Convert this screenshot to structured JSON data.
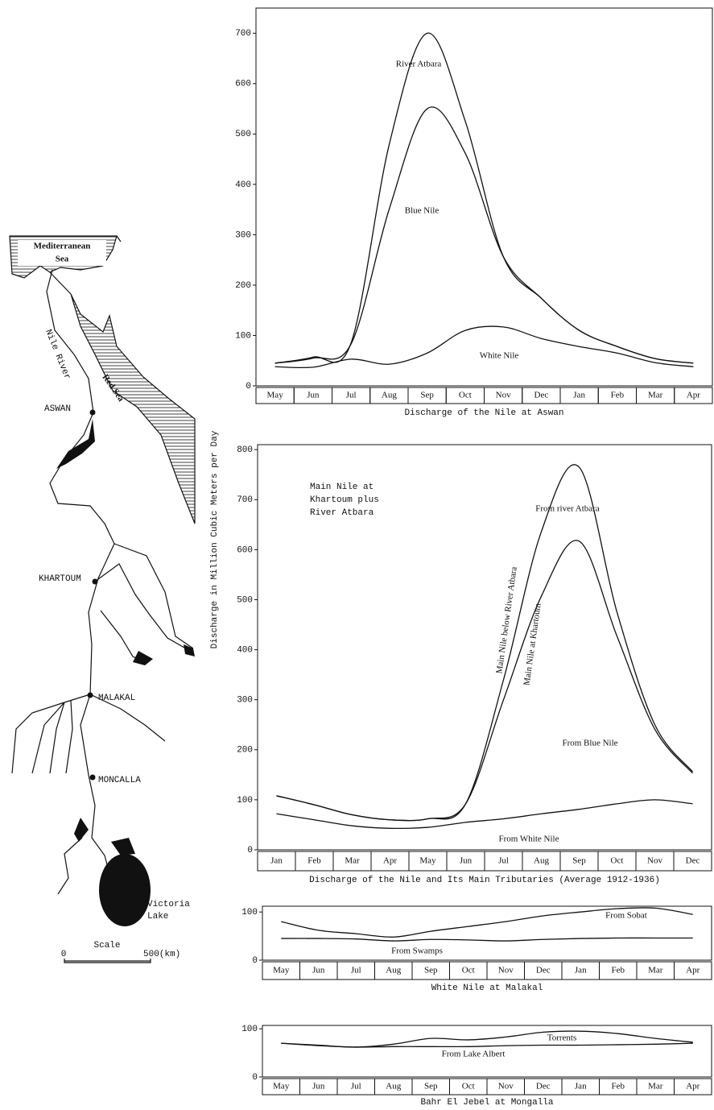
{
  "y_axis_label": "Discharge in Million Cubic Meters per Day",
  "map": {
    "mediterranean": [
      "Mediterranean",
      "Sea"
    ],
    "red_sea": "Red Sea",
    "river": "Nile River",
    "cities": [
      "ASWAN",
      "KHARTOUM",
      "MALAKAL",
      "MONCALLA"
    ],
    "lake": [
      "Victoria",
      "Lake"
    ],
    "scale": {
      "title": "Scale",
      "start": "0",
      "end": "500(km)"
    }
  },
  "chart_data": [
    {
      "type": "line",
      "stacked": true,
      "title": "Discharge of the Nile at Aswan",
      "categories": [
        "May",
        "Jun",
        "Jul",
        "Aug",
        "Sep",
        "Oct",
        "Nov",
        "Dec",
        "Jan",
        "Feb",
        "Mar",
        "Apr"
      ],
      "series": [
        {
          "name": "White Nile",
          "color": "#111111",
          "values": [
            38,
            37,
            53,
            43,
            65,
            110,
            117,
            94,
            78,
            65,
            46,
            38
          ]
        },
        {
          "name": "Blue Nile",
          "color": "#111111",
          "values": [
            7,
            18,
            30,
            307,
            485,
            352,
            140,
            80,
            32,
            13,
            8,
            7
          ]
        },
        {
          "name": "River Atbara",
          "color": "#111111",
          "values": [
            0,
            2,
            2,
            128,
            150,
            64,
            0,
            0,
            0,
            0,
            0,
            0
          ]
        }
      ],
      "ylim": [
        0,
        750
      ],
      "yticks": [
        0,
        100,
        200,
        300,
        400,
        500,
        600,
        700
      ]
    },
    {
      "type": "line",
      "stacked": true,
      "title": "Discharge of the Nile and Its Main Tributaries (Average 1912-1936)",
      "annotation": [
        "Main Nile at",
        "Khartoum plus",
        "River Atbara"
      ],
      "curve_labels": [
        "Main Nile below River Atbara",
        "Main Nile at Khartoum"
      ],
      "categories": [
        "Jan",
        "Feb",
        "Mar",
        "Apr",
        "May",
        "Jun",
        "Jul",
        "Aug",
        "Sep",
        "Oct",
        "Nov",
        "Dec"
      ],
      "series": [
        {
          "name": "From White Nile",
          "color": "#111111",
          "values": [
            72,
            60,
            48,
            43,
            45,
            55,
            62,
            72,
            81,
            92,
            100,
            92
          ]
        },
        {
          "name": "From Blue Nile",
          "color": "#111111",
          "values": [
            36,
            30,
            22,
            17,
            17,
            37,
            238,
            435,
            536,
            335,
            141,
            61
          ]
        },
        {
          "name": "From river Atbara",
          "color": "#111111",
          "values": [
            0,
            0,
            0,
            0,
            0,
            0,
            40,
            129,
            148,
            48,
            9,
            3
          ]
        }
      ],
      "ylim": [
        0,
        810
      ],
      "yticks": [
        0,
        100,
        200,
        300,
        400,
        500,
        600,
        700,
        800
      ]
    },
    {
      "type": "line",
      "stacked": true,
      "title": "White Nile at Malakal",
      "categories": [
        "May",
        "Jun",
        "Jul",
        "Aug",
        "Sep",
        "Oct",
        "Nov",
        "Dec",
        "Jan",
        "Feb",
        "Mar",
        "Apr"
      ],
      "series": [
        {
          "name": "From Swamps",
          "color": "#111111",
          "values": [
            45,
            45,
            44,
            40,
            43,
            42,
            40,
            43,
            45,
            46,
            46,
            46
          ]
        },
        {
          "name": "From Sobat",
          "color": "#111111",
          "values": [
            35,
            17,
            11,
            8,
            17,
            28,
            40,
            49,
            55,
            61,
            62,
            49
          ]
        }
      ],
      "ylim": [
        0,
        112
      ],
      "yticks": [
        0,
        100
      ]
    },
    {
      "type": "line",
      "stacked": true,
      "title": "Bahr El Jebel at Mongalla",
      "categories": [
        "May",
        "Jun",
        "Jul",
        "Aug",
        "Sep",
        "Oct",
        "Nov",
        "Dec",
        "Jan",
        "Feb",
        "Mar",
        "Apr"
      ],
      "series": [
        {
          "name": "From Lake Albert",
          "color": "#111111",
          "values": [
            70,
            65,
            62,
            63,
            63,
            63,
            65,
            66,
            66,
            67,
            68,
            70
          ]
        },
        {
          "name": "Torrents",
          "color": "#111111",
          "values": [
            0,
            1,
            0,
            5,
            17,
            14,
            18,
            27,
            29,
            23,
            12,
            2
          ]
        }
      ],
      "ylim": [
        0,
        107
      ],
      "yticks": [
        0,
        100
      ]
    }
  ]
}
